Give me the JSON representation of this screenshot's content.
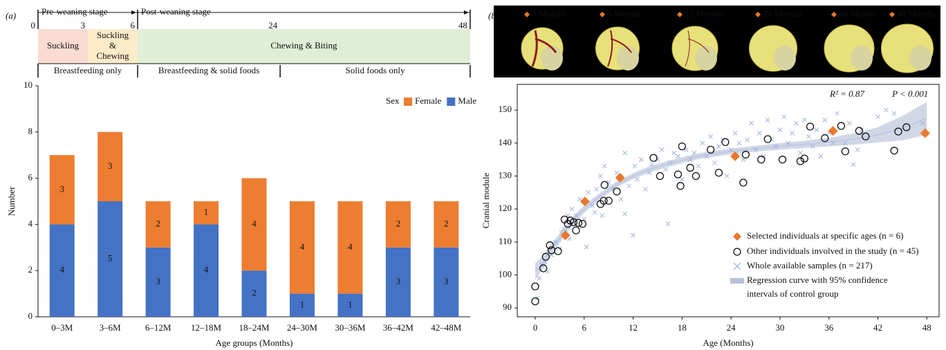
{
  "chart_data": [
    {
      "type": "bar",
      "panel_label": "(a)",
      "timeline": {
        "ticks": [
          0,
          3,
          6,
          24,
          48
        ],
        "phases": [
          {
            "label": "Pre-weaning stage",
            "start": 0,
            "end": 6
          },
          {
            "label": "Post-weaning stage",
            "start": 6,
            "end": 48
          }
        ],
        "feeding": [
          {
            "label": [
              "Suckling"
            ],
            "start": 0,
            "end": 3,
            "color": "#fadcd2"
          },
          {
            "label": [
              "Suckling",
              "&",
              "Chewing"
            ],
            "start": 3,
            "end": 6,
            "color": "#fdebc9"
          },
          {
            "label": [
              "Chewing & Biting"
            ],
            "start": 6,
            "end": 48,
            "color": "#dfeed5"
          }
        ],
        "diet": [
          {
            "label": "Breastfeeding only",
            "start": 0,
            "end": 6
          },
          {
            "label": "Breastfeeding & solid foods",
            "start": 6,
            "end": 24
          },
          {
            "label": "Solid foods only",
            "start": 24,
            "end": 48
          }
        ]
      },
      "xlabel": "Age groups (Months)",
      "ylabel": "Number",
      "categories": [
        "0–3M",
        "3–6M",
        "6–12M",
        "12–18M",
        "18–24M",
        "24–30M",
        "30–36M",
        "36–42M",
        "42–48M"
      ],
      "legend_title": "Sex",
      "series": [
        {
          "name": "Female",
          "color": "#ed7d31",
          "values": [
            3,
            3,
            2,
            1,
            4,
            4,
            4,
            2,
            2
          ]
        },
        {
          "name": "Male",
          "color": "#4472c4",
          "values": [
            4,
            5,
            3,
            4,
            2,
            1,
            1,
            3,
            3
          ]
        }
      ],
      "ylim": [
        0,
        10
      ],
      "yticks": [
        0,
        2,
        4,
        6,
        8,
        10
      ]
    },
    {
      "type": "scatter",
      "panel_label": "(b)",
      "image_labels": [
        "3 Months",
        "6 Months",
        "12 Months",
        "24 Months",
        "36 Months",
        "48 Months"
      ],
      "xlabel": "Age (Months)",
      "ylabel": "Cranial module",
      "annotations": [
        "R² = 0.87",
        "P < 0.001"
      ],
      "xlim": [
        -2.2,
        49.5
      ],
      "xticks": [
        0,
        6,
        12,
        18,
        24,
        30,
        36,
        42,
        48
      ],
      "ylim": [
        87.3,
        157.8
      ],
      "yticks": [
        90,
        100,
        110,
        120,
        130,
        140,
        150
      ],
      "series": [
        {
          "name": "Whole available samples (n = 217)",
          "marker": "cross",
          "color": "#9fb4df",
          "x": [
            0.3,
            0.5,
            0.8,
            1.2,
            1.5,
            2,
            2.5,
            3,
            3.2,
            3.5,
            4,
            4.2,
            4.5,
            5,
            5.5,
            6,
            6.3,
            6.5,
            7,
            7.3,
            7.5,
            8,
            8.2,
            8.5,
            9,
            9.5,
            10,
            10.5,
            11,
            11,
            11.5,
            12,
            12.2,
            12.5,
            13,
            13.5,
            14,
            14.3,
            15,
            15.5,
            16,
            16.3,
            16.5,
            17,
            17.5,
            18,
            18.5,
            19,
            19.5,
            20,
            20.5,
            21,
            21.5,
            22,
            22.5,
            23,
            23.5,
            24,
            24.5,
            25,
            25.5,
            26,
            26.5,
            27,
            27.5,
            28,
            28.5,
            29,
            29.5,
            30,
            30.5,
            31,
            31.5,
            32,
            32.5,
            33,
            33.5,
            34,
            34.5,
            35,
            35.5,
            36,
            36.5,
            37,
            38,
            38.5,
            39,
            39.5,
            40,
            42,
            43,
            44,
            47.5
          ],
          "y": [
            93,
            99,
            103,
            104,
            101,
            106,
            110,
            108,
            113,
            114,
            118,
            111,
            120,
            118,
            123,
            117,
            108.5,
            125,
            121,
            119,
            126,
            130,
            118,
            133,
            128,
            126,
            131,
            123,
            137,
            118.5,
            127,
            112,
            133,
            129,
            135,
            126,
            131,
            133.5,
            135,
            138,
            132,
            115.5,
            134,
            137,
            136,
            129,
            138,
            135,
            137,
            133,
            140,
            136,
            142,
            134,
            139,
            141,
            130,
            138,
            143,
            140,
            135,
            141,
            146,
            138,
            143,
            136,
            147,
            141,
            139,
            144,
            148,
            140,
            143,
            146,
            137,
            147,
            142,
            139,
            144,
            136,
            147,
            143,
            140,
            149,
            140,
            146,
            133.5,
            138,
            144,
            148,
            150,
            149,
            146
          ]
        },
        {
          "name": "Other individuals involved in the study (n = 45)",
          "marker": "circle",
          "color": "#111111",
          "x": [
            0,
            0,
            1,
            1.3,
            1.8,
            2,
            2.8,
            3.6,
            4,
            4.3,
            4.7,
            5,
            5.3,
            5.8,
            8,
            8.4,
            9,
            8.5,
            10,
            14.5,
            15.3,
            17.5,
            17.8,
            18,
            19,
            19.7,
            21.5,
            22.5,
            23.3,
            25.5,
            25.8,
            27.7,
            28.5,
            30.3,
            32.5,
            33,
            33.7,
            35.5,
            37.5,
            38,
            39.7,
            40.5,
            44,
            44.5,
            45.5
          ],
          "y": [
            96.5,
            92,
            102,
            105.5,
            109,
            107.5,
            107.2,
            116.8,
            115.5,
            116.5,
            116,
            113.5,
            115.8,
            115.5,
            121.5,
            122.5,
            122.5,
            127.3,
            125.3,
            135.5,
            130,
            130.5,
            127,
            139,
            132.5,
            130,
            138,
            131,
            140.3,
            128,
            136.5,
            135,
            141.2,
            135,
            134.5,
            135.3,
            145,
            141.5,
            145.2,
            137.5,
            143.7,
            142,
            137.7,
            143.5,
            144.8
          ]
        },
        {
          "name": "Selected individuals at specific ages (n = 6)",
          "marker": "diamond",
          "color": "#e8782e",
          "x": [
            3.7,
            6.1,
            10.4,
            24.5,
            36.5,
            47.8
          ],
          "y": [
            112,
            122.3,
            129.5,
            136,
            143.7,
            143
          ]
        },
        {
          "name": [
            "Regression curve with 95% confidence",
            "intervals of control group"
          ],
          "marker": "band",
          "color": "#9aa6c6",
          "x": [
            0,
            1,
            2,
            3,
            4,
            5,
            6,
            8,
            10,
            12,
            14,
            16,
            18,
            20,
            22,
            24,
            27,
            30,
            33,
            36,
            39,
            42,
            45,
            48
          ],
          "y": [
            101,
            104,
            108,
            111,
            114.5,
            117.5,
            120,
            124,
            127.5,
            130,
            132,
            133.5,
            134.8,
            136,
            136.8,
            137.5,
            138.3,
            139,
            139.6,
            140.3,
            141.2,
            142.5,
            144.5,
            147.5
          ],
          "lower": [
            98.5,
            102,
            106.3,
            109.6,
            113.2,
            116.3,
            118.9,
            123,
            126.6,
            129.1,
            131.1,
            132.6,
            133.9,
            135.1,
            135.9,
            136.6,
            137.4,
            138,
            138.5,
            139,
            139.5,
            140.2,
            140.8,
            142.5
          ],
          "upper": [
            103.5,
            106,
            109.7,
            112.4,
            115.8,
            118.7,
            121.1,
            125,
            128.4,
            130.9,
            132.9,
            134.4,
            135.7,
            136.9,
            137.7,
            138.4,
            139.2,
            140,
            140.7,
            141.6,
            142.9,
            144.8,
            148.2,
            152.5
          ]
        }
      ]
    }
  ]
}
